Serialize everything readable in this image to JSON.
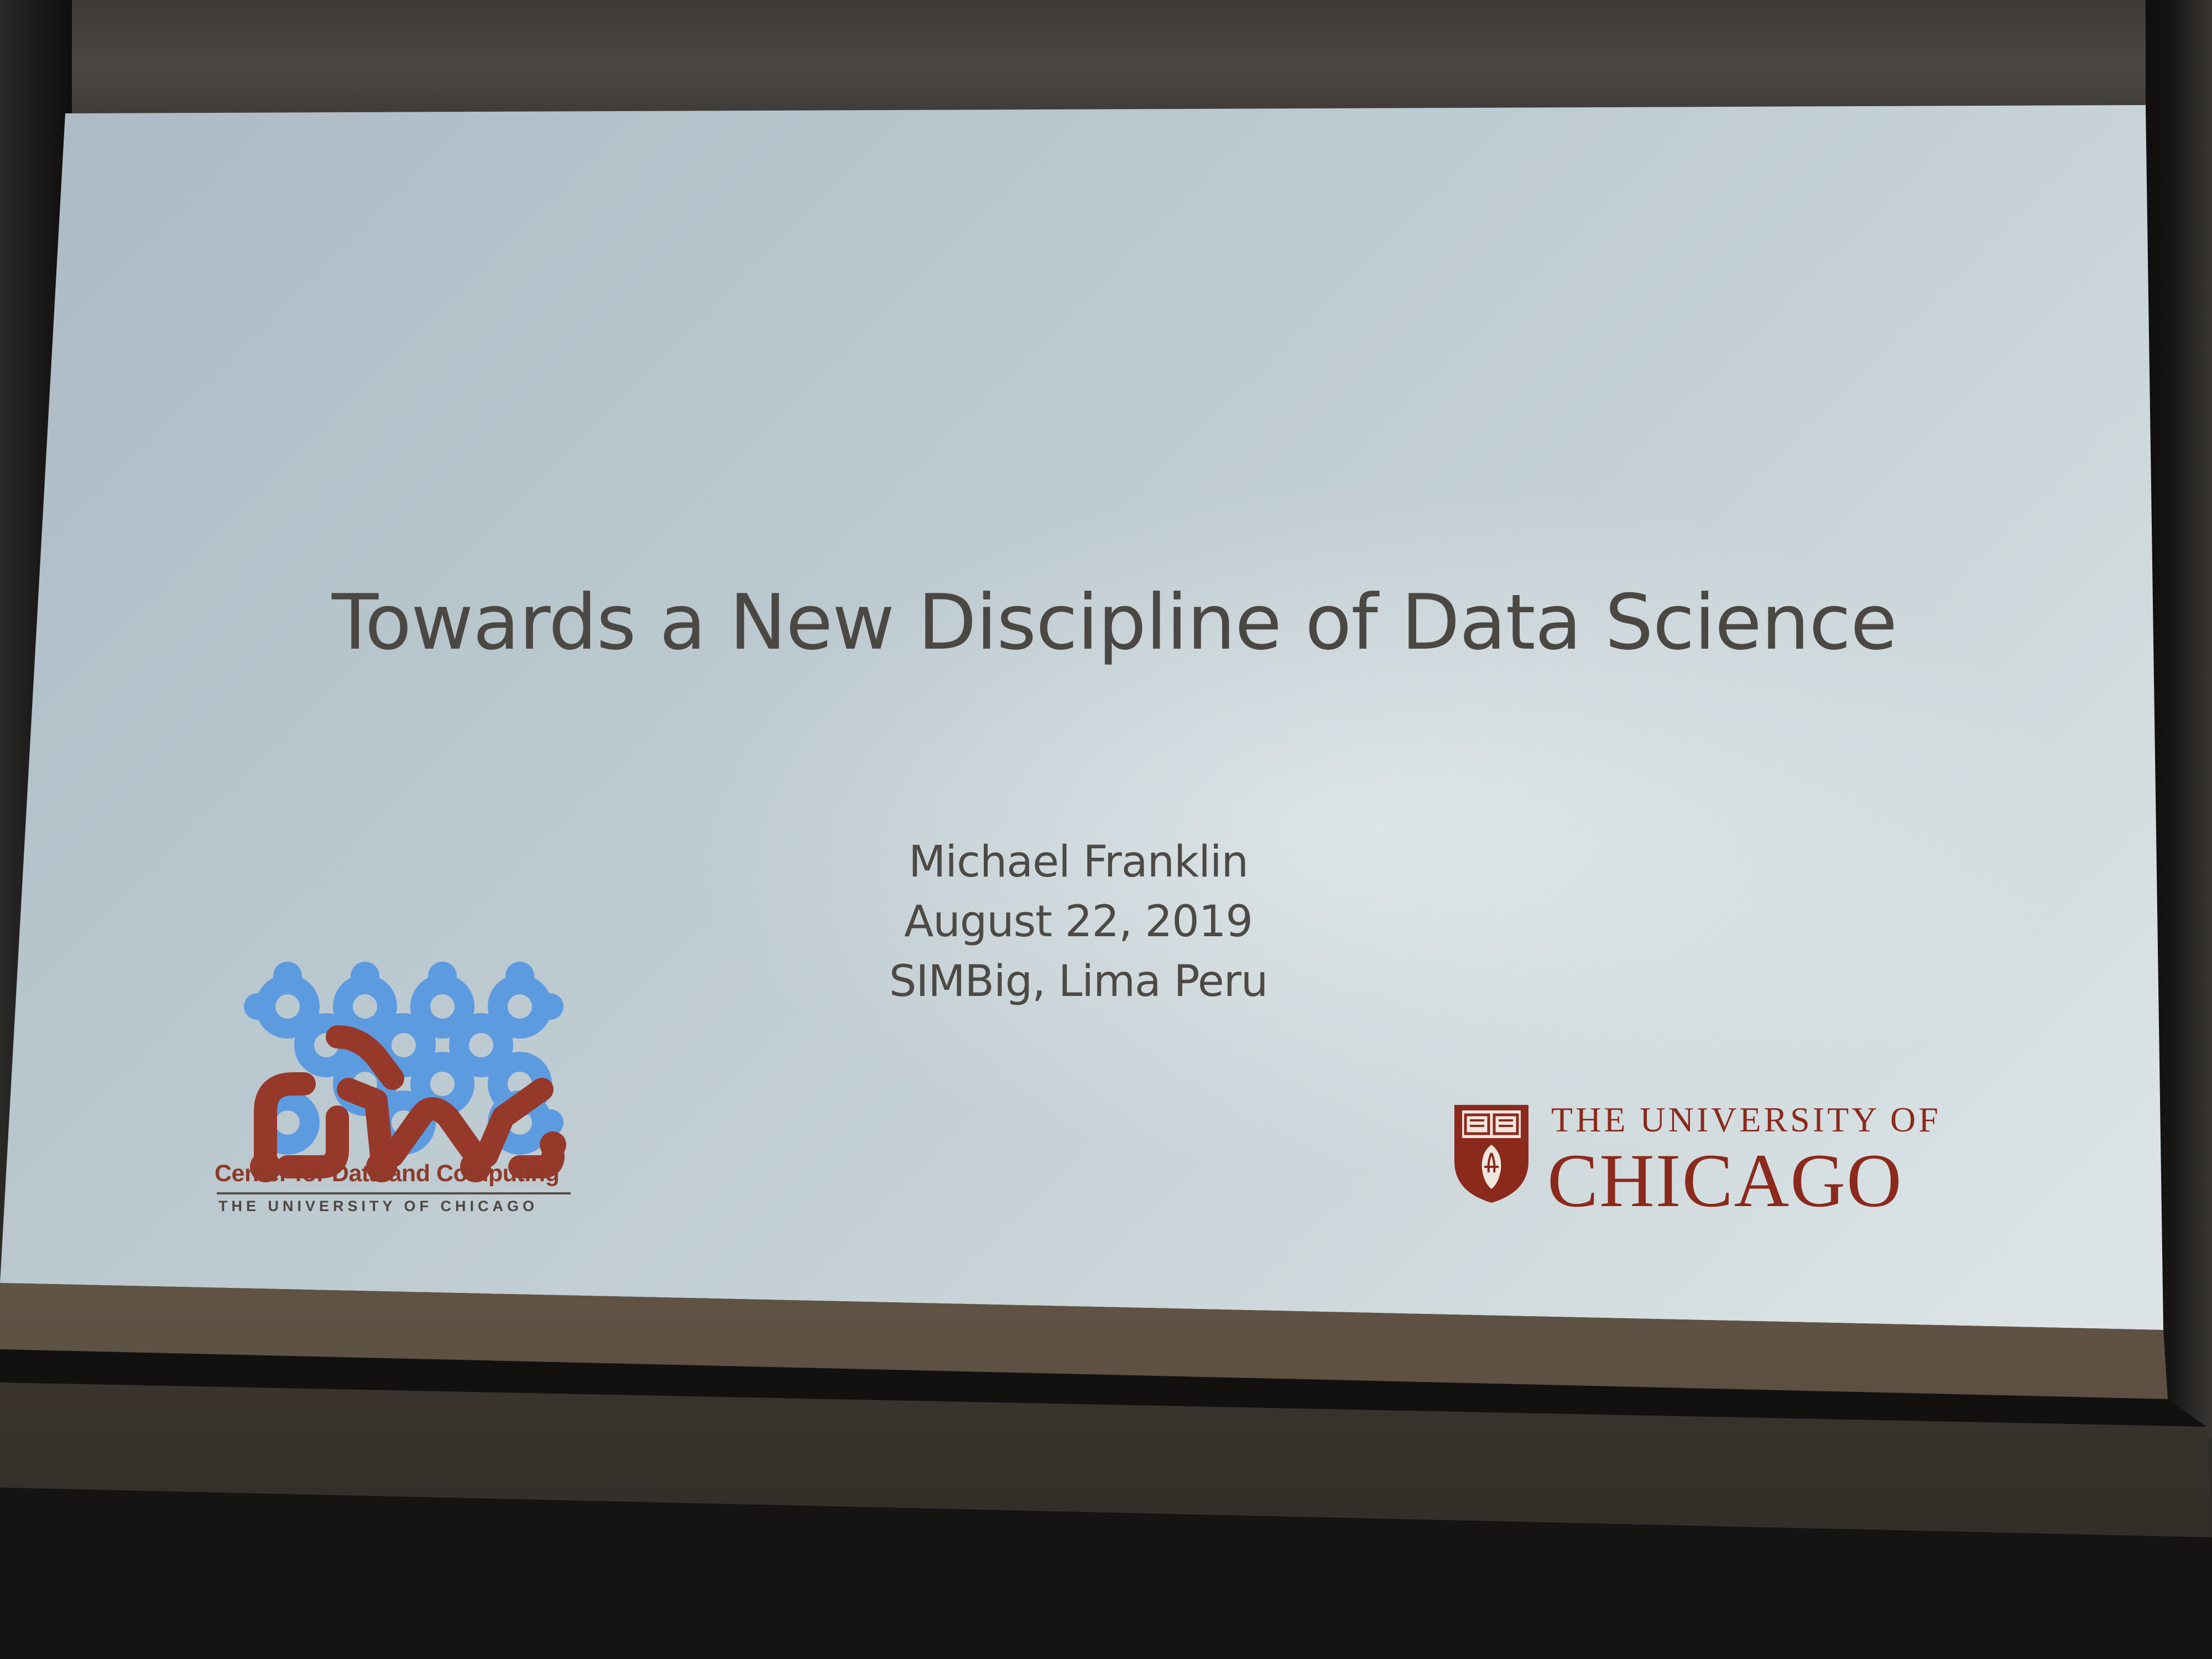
{
  "slide": {
    "title": "Towards a New Discipline of Data Science",
    "presenter": "Michael Franklin",
    "date": "August 22, 2019",
    "venue": "SIMBig, Lima Peru"
  },
  "logos": {
    "left": {
      "name": "Center for Data and Computing",
      "subtitle": "THE UNIVERSITY OF CHICAGO",
      "icon": "cdac-network-logo"
    },
    "right": {
      "line1": "THE UNIVERSITY OF",
      "line2": "CHICAGO",
      "icon": "uchicago-shield-icon"
    }
  },
  "colors": {
    "screen": "#c9d4d9",
    "title_text": "#4b4843",
    "maroon": "#8b2a1c",
    "logo_blue": "#5d9be0",
    "logo_red": "#96392a"
  }
}
